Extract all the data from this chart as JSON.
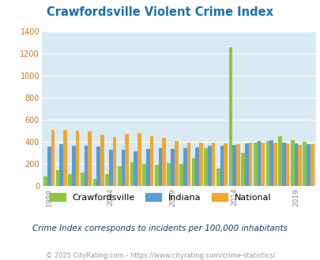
{
  "title": "Crawfordsville Violent Crime Index",
  "subtitle": "Crime Index corresponds to incidents per 100,000 inhabitants",
  "footer": "© 2025 CityRating.com - https://www.cityrating.com/crime-statistics/",
  "years": [
    1999,
    2000,
    2001,
    2002,
    2003,
    2004,
    2005,
    2006,
    2007,
    2008,
    2009,
    2010,
    2011,
    2012,
    2013,
    2014,
    2015,
    2016,
    2017,
    2018,
    2019,
    2020
  ],
  "crawfordsville": [
    85,
    145,
    110,
    120,
    65,
    105,
    180,
    210,
    200,
    195,
    205,
    200,
    250,
    340,
    155,
    1255,
    300,
    390,
    405,
    450,
    410,
    400
  ],
  "indiana": [
    355,
    375,
    365,
    365,
    355,
    325,
    325,
    315,
    335,
    340,
    335,
    340,
    350,
    360,
    360,
    370,
    385,
    405,
    410,
    390,
    385,
    375
  ],
  "national": [
    505,
    505,
    500,
    490,
    465,
    445,
    470,
    475,
    450,
    435,
    405,
    395,
    390,
    390,
    385,
    380,
    395,
    395,
    395,
    385,
    370,
    375
  ],
  "bar_colors": {
    "crawfordsville": "#8dc63f",
    "indiana": "#5b9bd5",
    "national": "#f0a830"
  },
  "plot_bg": "#daeaf4",
  "ylim": [
    0,
    1400
  ],
  "yticks": [
    0,
    200,
    400,
    600,
    800,
    1000,
    1200,
    1400
  ],
  "xlabel_years": [
    1999,
    2004,
    2009,
    2014,
    2019
  ],
  "title_color": "#1a6fad",
  "ytick_color": "#c07828",
  "xtick_color": "#888888",
  "subtitle_color": "#1a3a6a",
  "footer_color": "#999999",
  "legend_labels": [
    "Crawfordsville",
    "Indiana",
    "National"
  ]
}
